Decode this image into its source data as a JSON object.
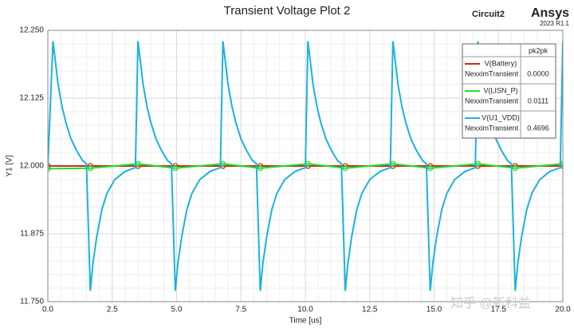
{
  "chart_data": {
    "type": "line",
    "title": "Transient Voltage Plot 2",
    "brand": {
      "design": "Circuit2",
      "name": "Ansys",
      "version": "2023 R1.1"
    },
    "x_label": "Time [us]",
    "y_label": "Y1 [V]",
    "watermark": "知乎 @新科益",
    "xlim": [
      0,
      20
    ],
    "xticks": [
      {
        "value": 0,
        "label": "0.0"
      },
      2.5,
      {
        "value": 5,
        "label": "5.0"
      },
      7.5,
      {
        "value": 10,
        "label": "10.0"
      },
      12.5,
      {
        "value": 15,
        "label": "15.0"
      },
      17.5,
      {
        "value": 20,
        "label": "20.0"
      }
    ],
    "ylim": [
      11.75,
      12.25
    ],
    "yticks": [
      {
        "value": 11.75,
        "label": "11.750"
      },
      {
        "value": 11.875,
        "label": "11.875"
      },
      {
        "value": 12,
        "label": "12.000"
      },
      {
        "value": 12.125,
        "label": "12.125"
      },
      {
        "value": 12.25,
        "label": "12.250"
      }
    ],
    "grid": true,
    "legend_header": "pk2pk",
    "series": [
      {
        "name": "V(Battery)",
        "solution": "NexximTransient",
        "pk2pk": "0.0000",
        "color": "#d0281e",
        "markers": true,
        "x": [
          0,
          1.65,
          3.5,
          4.95,
          6.8,
          8.25,
          10.1,
          11.55,
          13.4,
          14.85,
          16.7,
          18.15,
          20
        ],
        "values": [
          12,
          12,
          12,
          12,
          12,
          12,
          12,
          12,
          12,
          12,
          12,
          12,
          12
        ]
      },
      {
        "name": "V(LISN_P)",
        "solution": "NexximTransient",
        "pk2pk": "0.0111",
        "color": "#22e02a",
        "markers": true,
        "x": [
          0,
          1.65,
          3.5,
          4.95,
          6.8,
          8.25,
          10.1,
          11.55,
          13.4,
          14.85,
          16.7,
          18.15,
          20
        ],
        "values": [
          11.995,
          11.996,
          12.004,
          11.996,
          12.004,
          11.996,
          12.004,
          11.996,
          12.004,
          11.996,
          12.004,
          11.996,
          12.004
        ]
      },
      {
        "name": "V(U1_VDD)",
        "solution": "NexximTransient",
        "pk2pk": "0.4696",
        "color": "#1ab2e0",
        "markers": false,
        "x": [
          0,
          0.2,
          0.3,
          0.4,
          0.55,
          0.7,
          0.9,
          1.1,
          1.35,
          1.5,
          1.65,
          1.75,
          1.9,
          2.1,
          2.3,
          2.6,
          3.0,
          3.4,
          3.5,
          3.6,
          3.7,
          3.85,
          4.0,
          4.2,
          4.4,
          4.65,
          4.8,
          4.95,
          5.05,
          5.2,
          5.4,
          5.6,
          5.9,
          6.3,
          6.7,
          6.8,
          6.9,
          7.0,
          7.15,
          7.3,
          7.5,
          7.7,
          7.95,
          8.1,
          8.25,
          8.35,
          8.5,
          8.7,
          8.9,
          9.2,
          9.6,
          10.0,
          10.1,
          10.2,
          10.3,
          10.45,
          10.6,
          10.8,
          11.0,
          11.25,
          11.4,
          11.55,
          11.65,
          11.8,
          12.0,
          12.2,
          12.5,
          12.9,
          13.3,
          13.4,
          13.5,
          13.6,
          13.75,
          13.9,
          14.1,
          14.3,
          14.55,
          14.7,
          14.85,
          14.95,
          15.1,
          15.3,
          15.5,
          15.8,
          16.2,
          16.6,
          16.7,
          16.8,
          16.9,
          17.05,
          17.2,
          17.4,
          17.6,
          17.85,
          18.0,
          18.15,
          18.25,
          18.4,
          18.6,
          18.8,
          19.1,
          19.5,
          19.9,
          20.0
        ],
        "values": [
          12.0,
          12.23,
          12.19,
          12.15,
          12.11,
          12.08,
          12.05,
          12.03,
          12.01,
          12.004,
          11.77,
          11.82,
          11.87,
          11.92,
          11.95,
          11.975,
          11.99,
          11.997,
          12.23,
          12.19,
          12.15,
          12.11,
          12.08,
          12.05,
          12.03,
          12.01,
          12.004,
          11.77,
          11.82,
          11.87,
          11.92,
          11.95,
          11.975,
          11.99,
          11.997,
          12.23,
          12.19,
          12.15,
          12.11,
          12.08,
          12.05,
          12.03,
          12.01,
          12.004,
          11.77,
          11.82,
          11.87,
          11.92,
          11.95,
          11.975,
          11.99,
          11.997,
          12.23,
          12.19,
          12.15,
          12.11,
          12.08,
          12.05,
          12.03,
          12.01,
          12.004,
          11.77,
          11.82,
          11.87,
          11.92,
          11.95,
          11.975,
          11.99,
          11.997,
          12.23,
          12.19,
          12.15,
          12.11,
          12.08,
          12.05,
          12.03,
          12.01,
          12.004,
          11.77,
          11.82,
          11.87,
          11.92,
          11.95,
          11.975,
          11.99,
          11.997,
          12.23,
          12.19,
          12.15,
          12.11,
          12.08,
          12.05,
          12.03,
          12.01,
          12.004,
          11.77,
          11.82,
          11.87,
          11.92,
          11.95,
          11.975,
          11.99,
          11.997,
          12.23
        ]
      }
    ]
  }
}
